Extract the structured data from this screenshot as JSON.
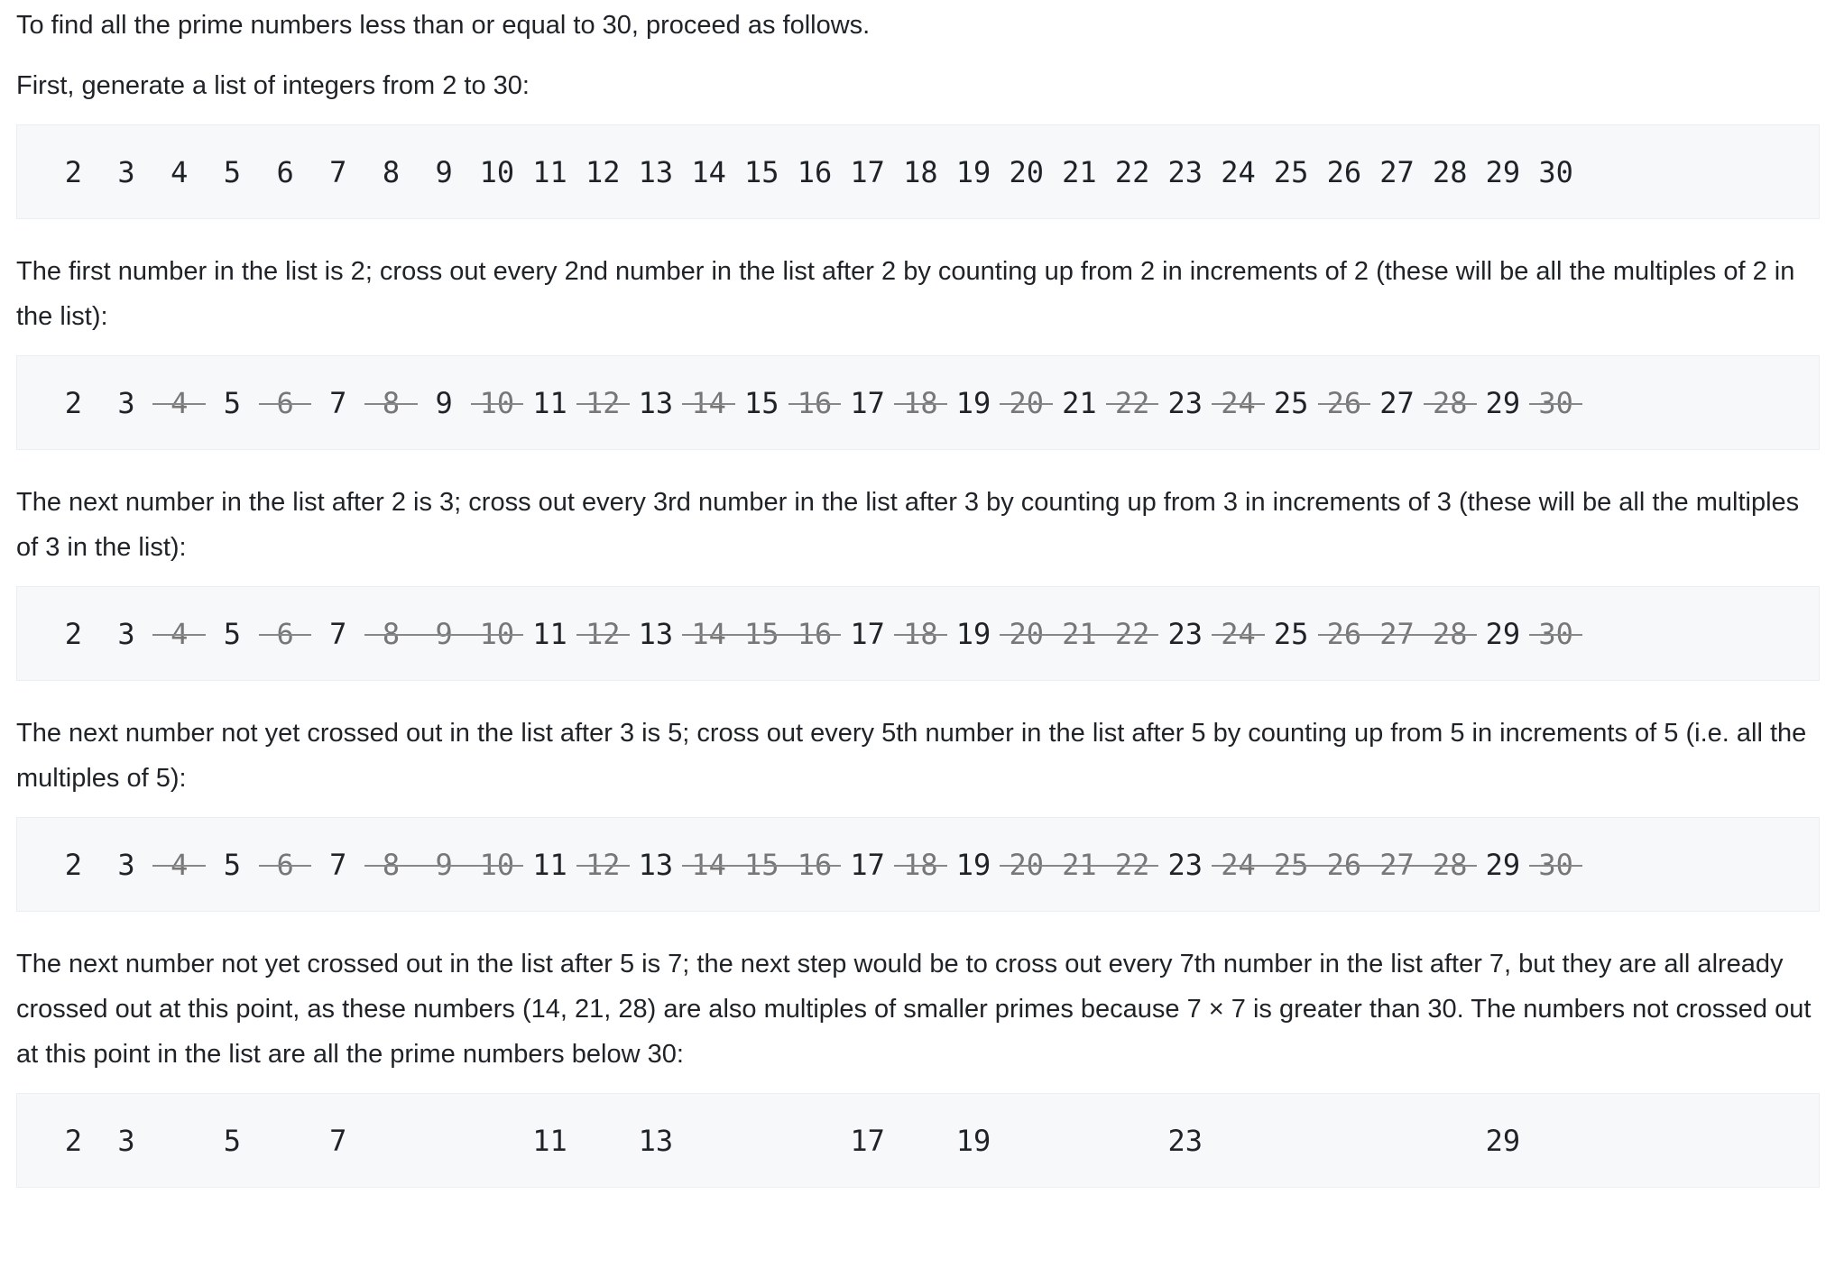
{
  "content": [
    {
      "type": "paragraph",
      "text": "To find all the prime numbers less than or equal to 30, proceed as follows."
    },
    {
      "type": "paragraph",
      "text": "First, generate a list of integers from 2 to 30:"
    },
    {
      "type": "numbers",
      "items": [
        {
          "text": "2",
          "crossed": false
        },
        {
          "text": "3",
          "crossed": false
        },
        {
          "text": "4",
          "crossed": false
        },
        {
          "text": "5",
          "crossed": false
        },
        {
          "text": "6",
          "crossed": false
        },
        {
          "text": "7",
          "crossed": false
        },
        {
          "text": "8",
          "crossed": false
        },
        {
          "text": "9",
          "crossed": false
        },
        {
          "text": "10",
          "crossed": false
        },
        {
          "text": "11",
          "crossed": false
        },
        {
          "text": "12",
          "crossed": false
        },
        {
          "text": "13",
          "crossed": false
        },
        {
          "text": "14",
          "crossed": false
        },
        {
          "text": "15",
          "crossed": false
        },
        {
          "text": "16",
          "crossed": false
        },
        {
          "text": "17",
          "crossed": false
        },
        {
          "text": "18",
          "crossed": false
        },
        {
          "text": "19",
          "crossed": false
        },
        {
          "text": "20",
          "crossed": false
        },
        {
          "text": "21",
          "crossed": false
        },
        {
          "text": "22",
          "crossed": false
        },
        {
          "text": "23",
          "crossed": false
        },
        {
          "text": "24",
          "crossed": false
        },
        {
          "text": "25",
          "crossed": false
        },
        {
          "text": "26",
          "crossed": false
        },
        {
          "text": "27",
          "crossed": false
        },
        {
          "text": "28",
          "crossed": false
        },
        {
          "text": "29",
          "crossed": false
        },
        {
          "text": "30",
          "crossed": false
        }
      ]
    },
    {
      "type": "paragraph",
      "text": "The first number in the list is 2; cross out every 2nd number in the list after 2 by counting up from 2 in increments of 2 (these will be all the multiples of 2 in the list):"
    },
    {
      "type": "numbers",
      "items": [
        {
          "text": "2",
          "crossed": false
        },
        {
          "text": "3",
          "crossed": false
        },
        {
          "text": "4",
          "crossed": true
        },
        {
          "text": "5",
          "crossed": false
        },
        {
          "text": "6",
          "crossed": true
        },
        {
          "text": "7",
          "crossed": false
        },
        {
          "text": "8",
          "crossed": true
        },
        {
          "text": "9",
          "crossed": false
        },
        {
          "text": "10",
          "crossed": true
        },
        {
          "text": "11",
          "crossed": false
        },
        {
          "text": "12",
          "crossed": true
        },
        {
          "text": "13",
          "crossed": false
        },
        {
          "text": "14",
          "crossed": true
        },
        {
          "text": "15",
          "crossed": false
        },
        {
          "text": "16",
          "crossed": true
        },
        {
          "text": "17",
          "crossed": false
        },
        {
          "text": "18",
          "crossed": true
        },
        {
          "text": "19",
          "crossed": false
        },
        {
          "text": "20",
          "crossed": true
        },
        {
          "text": "21",
          "crossed": false
        },
        {
          "text": "22",
          "crossed": true
        },
        {
          "text": "23",
          "crossed": false
        },
        {
          "text": "24",
          "crossed": true
        },
        {
          "text": "25",
          "crossed": false
        },
        {
          "text": "26",
          "crossed": true
        },
        {
          "text": "27",
          "crossed": false
        },
        {
          "text": "28",
          "crossed": true
        },
        {
          "text": "29",
          "crossed": false
        },
        {
          "text": "30",
          "crossed": true
        }
      ]
    },
    {
      "type": "paragraph",
      "text": "The next number in the list after 2 is 3; cross out every 3rd number in the list after 3 by counting up from 3 in increments of 3 (these will be all the multiples of 3 in the list):"
    },
    {
      "type": "numbers",
      "items": [
        {
          "text": "2",
          "crossed": false
        },
        {
          "text": "3",
          "crossed": false
        },
        {
          "text": "4",
          "crossed": true
        },
        {
          "text": "5",
          "crossed": false
        },
        {
          "text": "6",
          "crossed": true
        },
        {
          "text": "7",
          "crossed": false
        },
        {
          "text": "8",
          "crossed": true
        },
        {
          "text": "9",
          "crossed": true
        },
        {
          "text": "10",
          "crossed": true
        },
        {
          "text": "11",
          "crossed": false
        },
        {
          "text": "12",
          "crossed": true
        },
        {
          "text": "13",
          "crossed": false
        },
        {
          "text": "14",
          "crossed": true
        },
        {
          "text": "15",
          "crossed": true
        },
        {
          "text": "16",
          "crossed": true
        },
        {
          "text": "17",
          "crossed": false
        },
        {
          "text": "18",
          "crossed": true
        },
        {
          "text": "19",
          "crossed": false
        },
        {
          "text": "20",
          "crossed": true
        },
        {
          "text": "21",
          "crossed": true
        },
        {
          "text": "22",
          "crossed": true
        },
        {
          "text": "23",
          "crossed": false
        },
        {
          "text": "24",
          "crossed": true
        },
        {
          "text": "25",
          "crossed": false
        },
        {
          "text": "26",
          "crossed": true
        },
        {
          "text": "27",
          "crossed": true
        },
        {
          "text": "28",
          "crossed": true
        },
        {
          "text": "29",
          "crossed": false
        },
        {
          "text": "30",
          "crossed": true
        }
      ]
    },
    {
      "type": "paragraph",
      "text": "The next number not yet crossed out in the list after 3 is 5; cross out every 5th number in the list after 5 by counting up from 5 in increments of 5 (i.e. all the multiples of 5):"
    },
    {
      "type": "numbers",
      "items": [
        {
          "text": "2",
          "crossed": false
        },
        {
          "text": "3",
          "crossed": false
        },
        {
          "text": "4",
          "crossed": true
        },
        {
          "text": "5",
          "crossed": false
        },
        {
          "text": "6",
          "crossed": true
        },
        {
          "text": "7",
          "crossed": false
        },
        {
          "text": "8",
          "crossed": true
        },
        {
          "text": "9",
          "crossed": true
        },
        {
          "text": "10",
          "crossed": true
        },
        {
          "text": "11",
          "crossed": false
        },
        {
          "text": "12",
          "crossed": true
        },
        {
          "text": "13",
          "crossed": false
        },
        {
          "text": "14",
          "crossed": true
        },
        {
          "text": "15",
          "crossed": true
        },
        {
          "text": "16",
          "crossed": true
        },
        {
          "text": "17",
          "crossed": false
        },
        {
          "text": "18",
          "crossed": true
        },
        {
          "text": "19",
          "crossed": false
        },
        {
          "text": "20",
          "crossed": true
        },
        {
          "text": "21",
          "crossed": true
        },
        {
          "text": "22",
          "crossed": true
        },
        {
          "text": "23",
          "crossed": false
        },
        {
          "text": "24",
          "crossed": true
        },
        {
          "text": "25",
          "crossed": true
        },
        {
          "text": "26",
          "crossed": true
        },
        {
          "text": "27",
          "crossed": true
        },
        {
          "text": "28",
          "crossed": true
        },
        {
          "text": "29",
          "crossed": false
        },
        {
          "text": "30",
          "crossed": true
        }
      ]
    },
    {
      "type": "paragraph",
      "text": "The next number not yet crossed out in the list after 5 is 7; the next step would be to cross out every 7th number in the list after 7, but they are all already crossed out at this point, as these numbers (14, 21, 28) are also multiples of smaller primes because 7 × 7 is greater than 30. The numbers not crossed out at this point in the list are all the prime numbers below 30:"
    },
    {
      "type": "numbers",
      "items": [
        {
          "text": "2",
          "crossed": false
        },
        {
          "text": "3",
          "crossed": false
        },
        null,
        {
          "text": "5",
          "crossed": false
        },
        null,
        {
          "text": "7",
          "crossed": false
        },
        null,
        null,
        null,
        {
          "text": "11",
          "crossed": false
        },
        null,
        {
          "text": "13",
          "crossed": false
        },
        null,
        null,
        null,
        {
          "text": "17",
          "crossed": false
        },
        null,
        {
          "text": "19",
          "crossed": false
        },
        null,
        null,
        null,
        {
          "text": "23",
          "crossed": false
        },
        null,
        null,
        null,
        null,
        null,
        {
          "text": "29",
          "crossed": false
        },
        null
      ]
    }
  ]
}
